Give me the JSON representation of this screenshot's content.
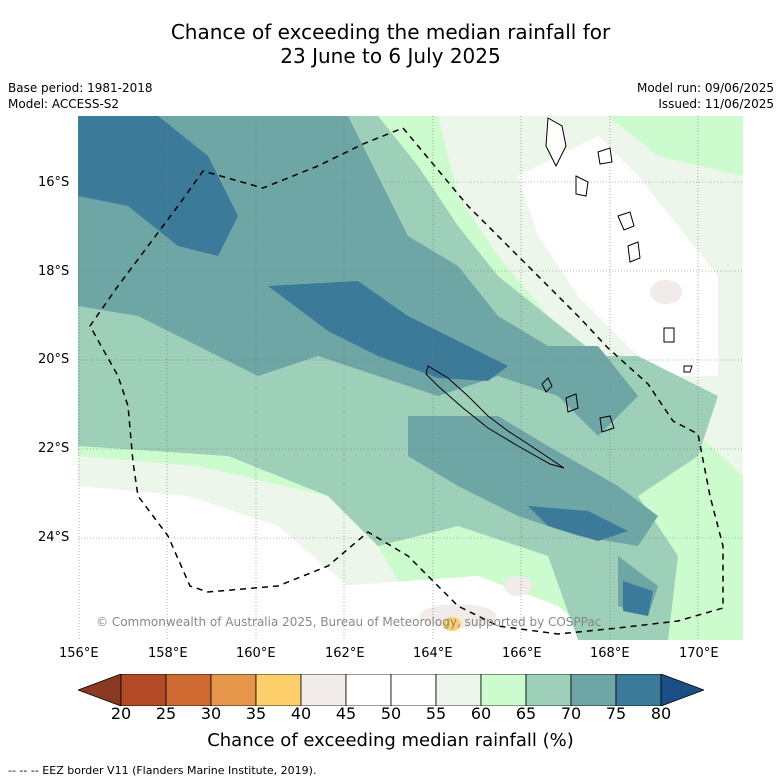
{
  "title": {
    "line1": "Chance of exceeding the median rainfall for",
    "line2": "23 June to 6 July 2025"
  },
  "meta": {
    "base_period": "Base period: 1981-2018",
    "model": "Model: ACCESS-S2",
    "model_run": "Model run: 09/06/2025",
    "issued": "Issued: 11/06/2025"
  },
  "map": {
    "lat_labels": [
      "16°S",
      "18°S",
      "20°S",
      "22°S",
      "24°S"
    ],
    "lon_labels": [
      "156°E",
      "158°E",
      "160°E",
      "162°E",
      "164°E",
      "166°E",
      "168°E",
      "170°E"
    ],
    "copyright": "© Commonwealth of Australia 2025, Bureau of Meteorology, supported by COSPPac"
  },
  "colorbar": {
    "ticks": [
      "20",
      "25",
      "30",
      "35",
      "40",
      "45",
      "50",
      "55",
      "60",
      "65",
      "70",
      "75",
      "80"
    ],
    "colors": [
      "#b24a26",
      "#cf6a33",
      "#e6964a",
      "#fdcf6a",
      "#f1ece9",
      "#ffffff",
      "#ffffff",
      "#ecf6ea",
      "#ccfcce",
      "#9ecfb8",
      "#6ea6a6",
      "#3c7a9a"
    ],
    "end_low": "#8a3a22",
    "end_high": "#1a4f86",
    "title": "Chance of exceeding median rainfall (%)"
  },
  "footer": "--  --  -- EEZ border V11 (Flanders Marine Institute, 2019)."
}
